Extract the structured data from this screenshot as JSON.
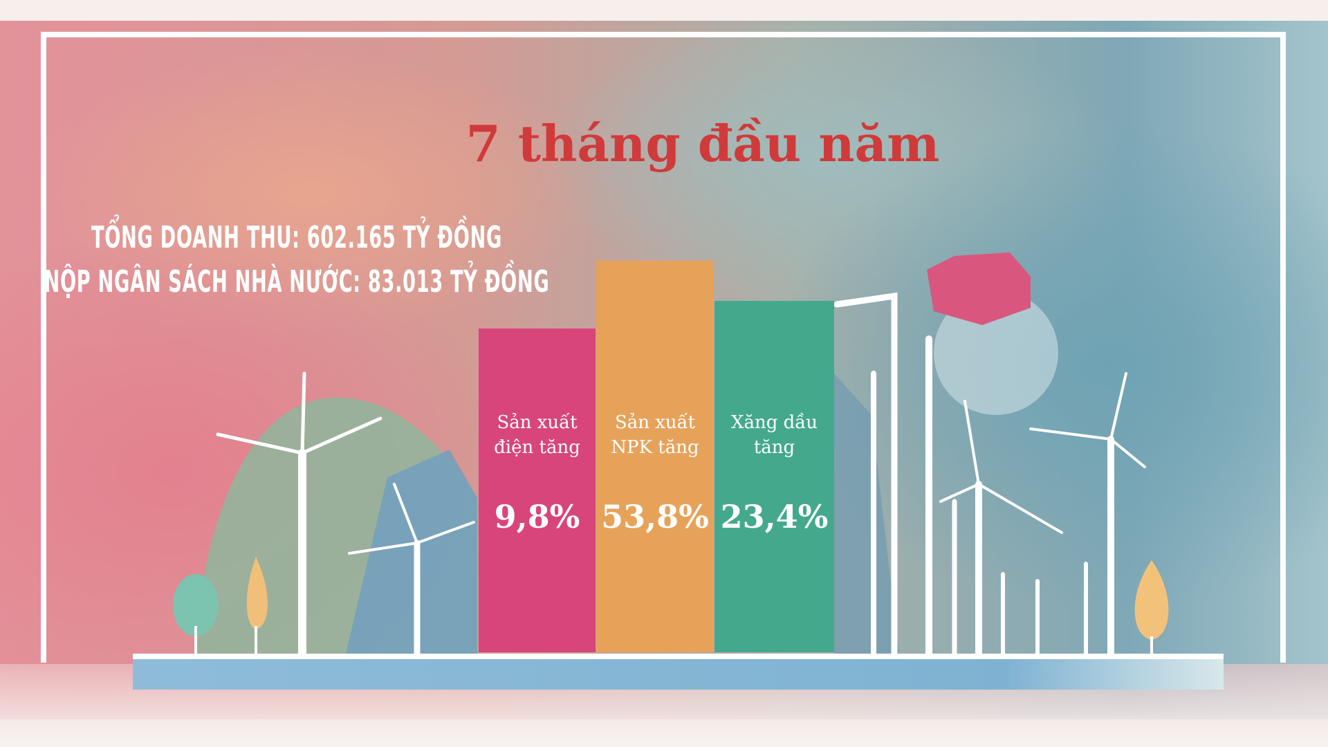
{
  "title": "7 tháng đầu năm",
  "stats": {
    "revenue": "TỔNG DOANH THU: 602.165 TỶ ĐỒNG",
    "budget": "NỘP NGÂN SÁCH NHÀ NƯỚC: 83.013 TỶ ĐỒNG"
  },
  "bars": [
    {
      "label": "Sản xuất điện tăng",
      "value": "9,8%",
      "color": "#d8457a"
    },
    {
      "label": "Sản xuất NPK tăng",
      "value": "53,8%",
      "color": "#e7a25a"
    },
    {
      "label": "Xăng dầu tăng",
      "value": "23,4%",
      "color": "#44a98c"
    }
  ],
  "colors": {
    "title": "#d03a3a",
    "frame": "#ffffff"
  }
}
